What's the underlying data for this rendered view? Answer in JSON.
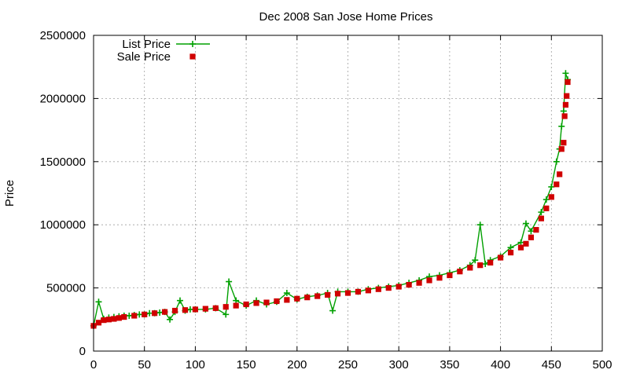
{
  "chart_data": {
    "type": "scatter",
    "title": "Dec 2008 San Jose Home Prices",
    "xlabel": "",
    "ylabel": "Price",
    "xlim": [
      0,
      500
    ],
    "ylim": [
      0,
      2500000
    ],
    "x_ticks": [
      "0",
      "50",
      "100",
      "150",
      "200",
      "250",
      "300",
      "350",
      "400",
      "450",
      "500"
    ],
    "y_ticks": [
      "0",
      "500000",
      "1000000",
      "1500000",
      "2000000",
      "2500000"
    ],
    "grid": true,
    "legend_position": "top-left",
    "series": [
      {
        "name": "List Price",
        "style": "lines+points",
        "marker": "plus",
        "color": "#00a000",
        "x": [
          0,
          5,
          10,
          15,
          20,
          25,
          30,
          35,
          40,
          45,
          50,
          55,
          60,
          65,
          70,
          75,
          80,
          85,
          90,
          95,
          100,
          110,
          120,
          130,
          133,
          140,
          150,
          160,
          170,
          180,
          190,
          200,
          210,
          220,
          230,
          235,
          240,
          250,
          260,
          270,
          280,
          290,
          300,
          310,
          320,
          330,
          340,
          350,
          360,
          370,
          375,
          380,
          385,
          390,
          400,
          410,
          420,
          425,
          430,
          440,
          445,
          450,
          455,
          458,
          460,
          462,
          464,
          466
        ],
        "y": [
          200000,
          390000,
          255000,
          265000,
          270000,
          275000,
          280000,
          280000,
          285000,
          290000,
          290000,
          300000,
          300000,
          305000,
          310000,
          250000,
          310000,
          400000,
          320000,
          330000,
          330000,
          330000,
          340000,
          290000,
          550000,
          400000,
          360000,
          400000,
          370000,
          390000,
          460000,
          410000,
          430000,
          440000,
          460000,
          320000,
          470000,
          470000,
          470000,
          490000,
          500000,
          510000,
          520000,
          540000,
          560000,
          590000,
          600000,
          620000,
          640000,
          680000,
          720000,
          1000000,
          690000,
          720000,
          750000,
          820000,
          860000,
          1010000,
          950000,
          1100000,
          1200000,
          1300000,
          1500000,
          1600000,
          1780000,
          1900000,
          2200000,
          2150000
        ]
      },
      {
        "name": "Sale Price",
        "style": "points",
        "marker": "square",
        "color": "#d00000",
        "x": [
          0,
          5,
          10,
          15,
          20,
          25,
          30,
          40,
          50,
          60,
          70,
          80,
          90,
          100,
          110,
          120,
          130,
          140,
          150,
          160,
          170,
          180,
          190,
          200,
          210,
          220,
          230,
          240,
          250,
          260,
          270,
          280,
          290,
          300,
          310,
          320,
          330,
          340,
          350,
          360,
          370,
          380,
          390,
          400,
          410,
          420,
          425,
          430,
          435,
          440,
          445,
          450,
          455,
          458,
          460,
          462,
          463,
          464,
          465,
          466
        ],
        "y": [
          200000,
          225000,
          245000,
          250000,
          255000,
          262000,
          270000,
          280000,
          290000,
          300000,
          310000,
          320000,
          325000,
          330000,
          335000,
          340000,
          350000,
          360000,
          370000,
          380000,
          385000,
          395000,
          405000,
          415000,
          425000,
          435000,
          445000,
          455000,
          460000,
          470000,
          480000,
          490000,
          500000,
          510000,
          525000,
          540000,
          560000,
          580000,
          600000,
          630000,
          660000,
          680000,
          700000,
          740000,
          780000,
          820000,
          850000,
          900000,
          960000,
          1050000,
          1130000,
          1220000,
          1320000,
          1400000,
          1600000,
          1650000,
          1860000,
          1950000,
          2020000,
          2130000
        ]
      }
    ]
  }
}
